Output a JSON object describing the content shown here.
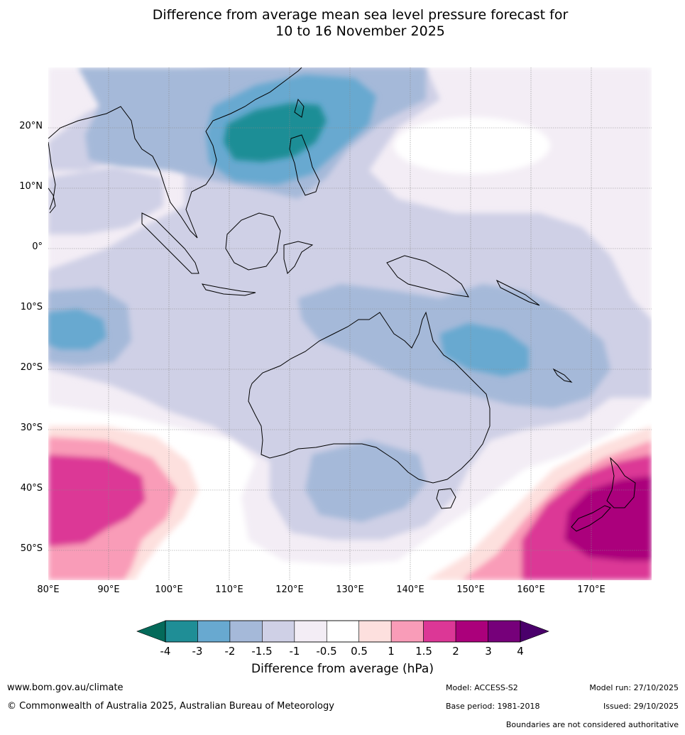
{
  "title": {
    "line1": "Difference from average mean sea level pressure forecast for",
    "line2": "10 to 16 November 2025"
  },
  "map": {
    "lat_labels": [
      "20°N",
      "10°N",
      "0°",
      "10°S",
      "20°S",
      "30°S",
      "40°S",
      "50°S"
    ],
    "lon_labels": [
      "80°E",
      "90°E",
      "100°E",
      "110°E",
      "120°E",
      "130°E",
      "140°E",
      "150°E",
      "160°E",
      "170°E"
    ],
    "extent": {
      "lon_min": 80,
      "lon_max": 180,
      "lat_min": -55,
      "lat_max": 30
    }
  },
  "colorbar": {
    "ticks": [
      "-4",
      "-3",
      "-2",
      "-1.5",
      "-1",
      "-0.5",
      "0.5",
      "1",
      "1.5",
      "2",
      "3",
      "4"
    ],
    "colors": [
      "#1f8e96",
      "#68a9d0",
      "#a5b9d9",
      "#cfd0e6",
      "#f3edf5",
      "#ffffff",
      "#fde0de",
      "#f99cb8",
      "#dc3796",
      "#ab007b",
      "#76007a"
    ],
    "under_color": "#046a5a",
    "over_color": "#4a006b",
    "label": "Difference from average (hPa)"
  },
  "footer": {
    "website": "www.bom.gov.au/climate",
    "copyright": "© Commonwealth of Australia 2025, Australian Bureau of Meteorology",
    "model": "Model: ACCESS-S2",
    "base_period": "Base period: 1981-2018",
    "model_run": "Model run: 27/10/2025",
    "issued": "Issued: 29/10/2025",
    "disclaimer": "Boundaries are not considered authoritative"
  }
}
